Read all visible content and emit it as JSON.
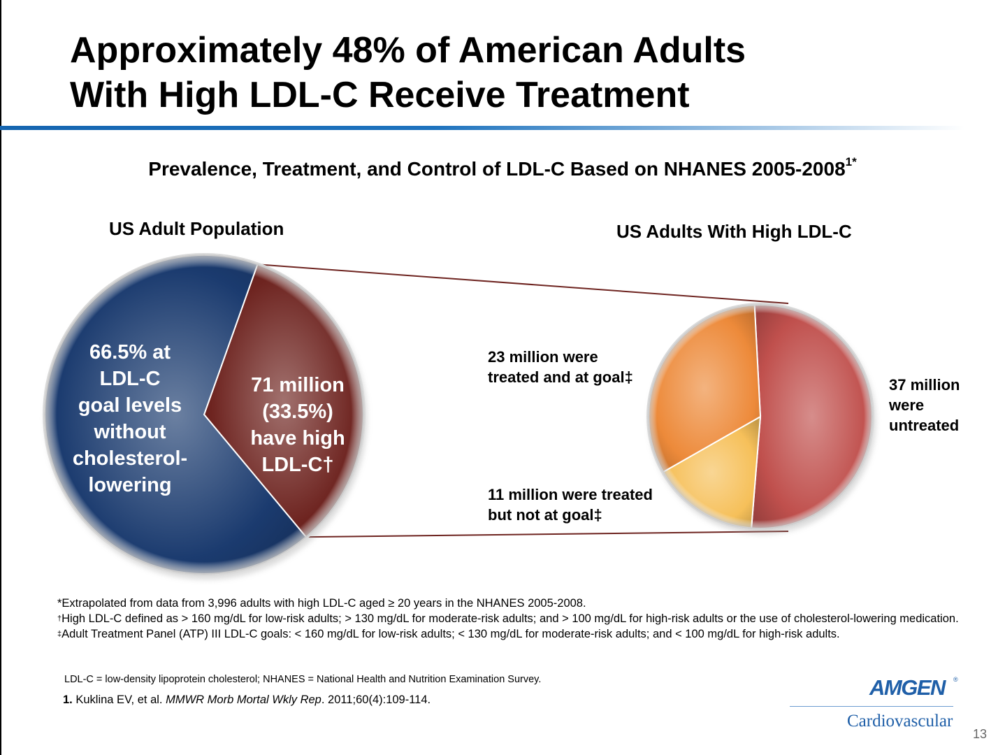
{
  "slide": {
    "title_line1": "Approximately 48% of American Adults",
    "title_line2": "With High LDL-C Receive Treatment",
    "subtitle": "Prevalence, Treatment, and Control of LDL-C Based on NHANES 2005-2008",
    "subtitle_sup": "1*",
    "page_number": "13"
  },
  "chart_data": [
    {
      "type": "pie",
      "title": "US Adult Population",
      "slices": [
        {
          "label_lines": [
            "66.5% at",
            "LDL-C",
            "goal levels",
            "without",
            "cholesterol-",
            "lowering"
          ],
          "value": 66.5,
          "color": "#1b3b6f"
        },
        {
          "label_lines": [
            "71 million",
            "(33.5%)",
            "have high",
            "LDL-C†"
          ],
          "value": 33.5,
          "color": "#6e2420"
        }
      ]
    },
    {
      "type": "pie",
      "title": "US Adults With High LDL-C",
      "unit": "million",
      "slices": [
        {
          "label_lines": [
            "37 million",
            "were",
            "untreated"
          ],
          "value": 37,
          "color": "#c0504d"
        },
        {
          "label_lines": [
            "11 million were treated",
            "but not at goal‡"
          ],
          "value": 11,
          "color": "#f6c05a"
        },
        {
          "label_lines": [
            "23 million were",
            "treated and at goal‡"
          ],
          "value": 23,
          "color": "#ed8a3a"
        }
      ]
    }
  ],
  "footnotes": {
    "asterisk": "*Extrapolated from data from 3,996 adults with high LDL-C aged ≥ 20 years in the NHANES 2005-2008.",
    "dagger_mark": "†",
    "dagger": "High LDL-C defined as > 160 mg/dL for low-risk adults; > 130 mg/dL for moderate-risk adults; and > 100 mg/dL for high-risk adults or the use of cholesterol-lowering medication.",
    "ddagger_mark": "‡",
    "ddagger": "Adult Treatment Panel (ATP) III LDL-C goals: < 160 mg/dL for low-risk adults; < 130 mg/dL for moderate-risk adults; and < 100 mg/dL for high-risk adults.",
    "abbreviations": "LDL-C = low-density lipoprotein cholesterol; NHANES = National Health and Nutrition Examination Survey.",
    "ref_num": "1.",
    "ref_authors": "Kuklina EV, et al.",
    "ref_journal": "MMWR Morb Mortal Wkly Rep",
    "ref_rest": ". 2011;60(4):109-114."
  },
  "logo": {
    "brand": "AMGEN",
    "reg": "®",
    "division": "Cardiovascular"
  }
}
